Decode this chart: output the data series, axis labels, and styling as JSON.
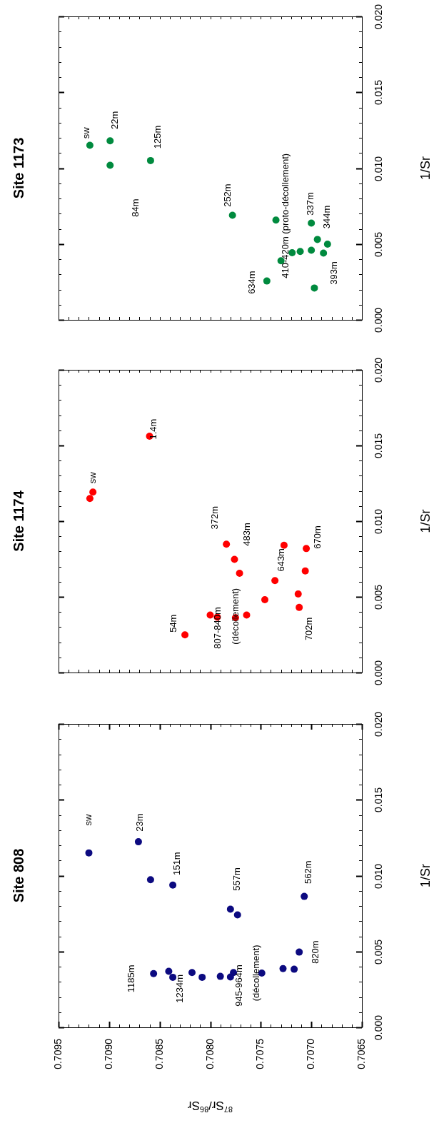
{
  "chart_data": [
    {
      "type": "scatter",
      "title": "Site 1173",
      "ylabel": "1/Sr",
      "marker": "circle",
      "tick_labels": "y",
      "x": [
        0.70919,
        0.70899,
        0.70899,
        0.70859,
        0.70778,
        0.70735,
        0.707,
        0.70694,
        0.70684,
        0.707,
        0.70688,
        0.70711,
        0.70719,
        0.7073,
        0.70744,
        0.70697
      ],
      "series": [
        {
          "color": "#008a3e",
          "values": [
            0.01151,
            0.0118,
            0.01019,
            0.0105,
            0.00689,
            0.00658,
            0.00638,
            0.0053,
            0.00499,
            0.00459,
            0.0044,
            0.00451,
            0.00442,
            0.00389,
            0.00256,
            0.0021
          ]
        }
      ],
      "xlim": [
        0.7095,
        0.7065
      ],
      "xticks": [
        {
          "value": 0.7065,
          "label": null
        },
        {
          "value": 0.7066,
          "label": null
        },
        {
          "value": 0.7067,
          "label": null
        },
        {
          "value": 0.7068,
          "label": null
        },
        {
          "value": 0.7069,
          "label": null
        },
        {
          "value": 0.707,
          "label": null
        },
        {
          "value": 0.7071,
          "label": null
        },
        {
          "value": 0.7072,
          "label": null
        },
        {
          "value": 0.7073,
          "label": null
        },
        {
          "value": 0.7074,
          "label": null
        },
        {
          "value": 0.7075,
          "label": null
        },
        {
          "value": 0.7076,
          "label": null
        },
        {
          "value": 0.7077,
          "label": null
        },
        {
          "value": 0.7078,
          "label": null
        },
        {
          "value": 0.7079,
          "label": null
        },
        {
          "value": 0.708,
          "label": null
        },
        {
          "value": 0.7081,
          "label": null
        },
        {
          "value": 0.7082,
          "label": null
        },
        {
          "value": 0.7083,
          "label": null
        },
        {
          "value": 0.7084,
          "label": null
        },
        {
          "value": 0.7085,
          "label": null
        },
        {
          "value": 0.7086,
          "label": null
        },
        {
          "value": 0.7087,
          "label": null
        },
        {
          "value": 0.7088,
          "label": null
        },
        {
          "value": 0.7089,
          "label": null
        },
        {
          "value": 0.709,
          "label": null
        },
        {
          "value": 0.7091,
          "label": null
        },
        {
          "value": 0.7092,
          "label": null
        },
        {
          "value": 0.7093,
          "label": null
        },
        {
          "value": 0.7094,
          "label": null
        },
        {
          "value": 0.7095,
          "label": null
        }
      ],
      "ylim": [
        0,
        0.02
      ],
      "yticks": [
        {
          "value": 0,
          "label": "0.000"
        },
        {
          "value": 0.001,
          "label": null
        },
        {
          "value": 0.002,
          "label": null
        },
        {
          "value": 0.003,
          "label": null
        },
        {
          "value": 0.004,
          "label": null
        },
        {
          "value": 0.005,
          "label": "0.005"
        },
        {
          "value": 0.006,
          "label": null
        },
        {
          "value": 0.007,
          "label": null
        },
        {
          "value": 0.008,
          "label": null
        },
        {
          "value": 0.009,
          "label": null
        },
        {
          "value": 0.01,
          "label": "0.010"
        },
        {
          "value": 0.011,
          "label": null
        },
        {
          "value": 0.012,
          "label": null
        },
        {
          "value": 0.013,
          "label": null
        },
        {
          "value": 0.014,
          "label": null
        },
        {
          "value": 0.015,
          "label": "0.015"
        },
        {
          "value": 0.016,
          "label": null
        },
        {
          "value": 0.017,
          "label": null
        },
        {
          "value": 0.018,
          "label": null
        },
        {
          "value": 0.019,
          "label": null
        },
        {
          "value": 0.02,
          "label": "0.020"
        }
      ],
      "annotations": [
        {
          "text": "sw",
          "x": 0.70919,
          "y": 0.01151
        },
        {
          "text": "22m",
          "x": 0.70899,
          "y": 0.0118
        },
        {
          "text": "125m",
          "x": 0.70859,
          "y": 0.0105
        },
        "84m",
        {
          "text": "252m",
          "x": 0.70778,
          "y": 0.00689
        },
        {
          "text": "337m",
          "x": 0.707,
          "y": 0.00638
        },
        {
          "text": "344m",
          "x": 0.70684,
          "y": 0.00499
        },
        {
          "text": "393m",
          "x": 0.70697,
          "y": 0.0021
        },
        {
          "text": "634m",
          "x": 0.70744,
          "y": 0.00256
        },
        {
          "text": "410-420m (proto-décollement)",
          "x": 0.7073,
          "y": 0.00389
        }
      ]
    },
    {
      "type": "scatter",
      "title": "Site 1174",
      "ylabel": "1/Sr",
      "marker": "circle",
      "tick_labels": "y",
      "x": [
        0.70919,
        0.70916,
        0.7086,
        0.70825,
        0.708,
        0.70793,
        0.70784,
        0.70776,
        0.70771,
        0.70775,
        0.70764,
        0.70746,
        0.70736,
        0.70727,
        0.70705,
        0.70706,
        0.70713,
        0.70712
      ],
      "series": [
        {
          "color": "#ff0000",
          "values": [
            0.0115,
            0.01192,
            0.01561,
            0.00249,
            0.0038,
            0.00366,
            0.00848,
            0.00748,
            0.00656,
            0.00362,
            0.0038,
            0.00481,
            0.00607,
            0.00841,
            0.00819,
            0.00671,
            0.00519,
            0.0043
          ]
        }
      ],
      "xlim": [
        0.7095,
        0.7065
      ],
      "xticks": [
        {
          "value": 0.7065,
          "label": null
        },
        {
          "value": 0.7066,
          "label": null
        },
        {
          "value": 0.7067,
          "label": null
        },
        {
          "value": 0.7068,
          "label": null
        },
        {
          "value": 0.7069,
          "label": null
        },
        {
          "value": 0.707,
          "label": null
        },
        {
          "value": 0.7071,
          "label": null
        },
        {
          "value": 0.7072,
          "label": null
        },
        {
          "value": 0.7073,
          "label": null
        },
        {
          "value": 0.7074,
          "label": null
        },
        {
          "value": 0.7075,
          "label": null
        },
        {
          "value": 0.7076,
          "label": null
        },
        {
          "value": 0.7077,
          "label": null
        },
        {
          "value": 0.7078,
          "label": null
        },
        {
          "value": 0.7079,
          "label": null
        },
        {
          "value": 0.708,
          "label": null
        },
        {
          "value": 0.7081,
          "label": null
        },
        {
          "value": 0.7082,
          "label": null
        },
        {
          "value": 0.7083,
          "label": null
        },
        {
          "value": 0.7084,
          "label": null
        },
        {
          "value": 0.7085,
          "label": null
        },
        {
          "value": 0.7086,
          "label": null
        },
        {
          "value": 0.7087,
          "label": null
        },
        {
          "value": 0.7088,
          "label": null
        },
        {
          "value": 0.7089,
          "label": null
        },
        {
          "value": 0.709,
          "label": null
        },
        {
          "value": 0.7091,
          "label": null
        },
        {
          "value": 0.7092,
          "label": null
        },
        {
          "value": 0.7093,
          "label": null
        },
        {
          "value": 0.7094,
          "label": null
        },
        {
          "value": 0.7095,
          "label": null
        }
      ],
      "ylim": [
        0,
        0.02
      ],
      "yticks": [
        {
          "value": 0,
          "label": "0.000"
        },
        {
          "value": 0.001,
          "label": null
        },
        {
          "value": 0.002,
          "label": null
        },
        {
          "value": 0.003,
          "label": null
        },
        {
          "value": 0.004,
          "label": null
        },
        {
          "value": 0.005,
          "label": "0.005"
        },
        {
          "value": 0.006,
          "label": null
        },
        {
          "value": 0.007,
          "label": null
        },
        {
          "value": 0.008,
          "label": null
        },
        {
          "value": 0.009,
          "label": null
        },
        {
          "value": 0.01,
          "label": "0.010"
        },
        {
          "value": 0.011,
          "label": null
        },
        {
          "value": 0.012,
          "label": null
        },
        {
          "value": 0.013,
          "label": null
        },
        {
          "value": 0.014,
          "label": null
        },
        {
          "value": 0.015,
          "label": "0.015"
        },
        {
          "value": 0.016,
          "label": null
        },
        {
          "value": 0.017,
          "label": null
        },
        {
          "value": 0.018,
          "label": null
        },
        {
          "value": 0.019,
          "label": null
        },
        {
          "value": 0.02,
          "label": "0.020"
        }
      ],
      "annotations": [
        {
          "text": "sw",
          "x": 0.70916,
          "y": 0.01192
        },
        {
          "text": "1.4m",
          "x": 0.7086,
          "y": 0.01561
        },
        {
          "text": "372m",
          "x": 0.70784,
          "y": 0.00848
        },
        {
          "text": "483m",
          "x": 0.70776,
          "y": 0.00748
        },
        {
          "text": "643m",
          "x": 0.70736,
          "y": 0.00607
        },
        {
          "text": "670m",
          "x": 0.70705,
          "y": 0.00819
        },
        {
          "text": "702m",
          "x": 0.70712,
          "y": 0.0043
        },
        {
          "text": "54m",
          "x": 0.70825,
          "y": 0.00249
        },
        {
          "text": "807-840m",
          "x": 0.70793,
          "y": 0.00366
        },
        {
          "text": "(décollement)",
          "x": 0.70775,
          "y": 0.00362
        }
      ]
    },
    {
      "type": "scatter",
      "title": "Site 808",
      "xlabel": "$^{87}$Sr/$^{86}$Sr",
      "ylabel": "1/Sr",
      "marker": "circle",
      "x": [
        0.7092,
        0.70871,
        0.70859,
        0.70837,
        0.7078,
        0.70773,
        0.70707,
        0.70712,
        0.70717,
        0.70728,
        0.70749,
        0.70777,
        0.7078,
        0.7079,
        0.70808,
        0.70818,
        0.70837,
        0.70841,
        0.70856
      ],
      "series": [
        {
          "color": "#0c0a80",
          "values": [
            0.0115,
            0.01223,
            0.00973,
            0.00938,
            0.00779,
            0.00741,
            0.00863,
            0.00496,
            0.00383,
            0.00387,
            0.00358,
            0.00361,
            0.00332,
            0.00336,
            0.0033,
            0.00361,
            0.0033,
            0.00369,
            0.00354
          ]
        }
      ],
      "xlim": [
        0.7095,
        0.7065
      ],
      "xticks": [
        {
          "value": 0.7065,
          "label": "0.7065"
        },
        {
          "value": 0.7066,
          "label": null
        },
        {
          "value": 0.7067,
          "label": null
        },
        {
          "value": 0.7068,
          "label": null
        },
        {
          "value": 0.7069,
          "label": null
        },
        {
          "value": 0.707,
          "label": "0.7070"
        },
        {
          "value": 0.7071,
          "label": null
        },
        {
          "value": 0.7072,
          "label": null
        },
        {
          "value": 0.7073,
          "label": null
        },
        {
          "value": 0.7074,
          "label": null
        },
        {
          "value": 0.7075,
          "label": "0.7075"
        },
        {
          "value": 0.7076,
          "label": null
        },
        {
          "value": 0.7077,
          "label": null
        },
        {
          "value": 0.7078,
          "label": null
        },
        {
          "value": 0.7079,
          "label": null
        },
        {
          "value": 0.708,
          "label": "0.7080"
        },
        {
          "value": 0.7081,
          "label": null
        },
        {
          "value": 0.7082,
          "label": null
        },
        {
          "value": 0.7083,
          "label": null
        },
        {
          "value": 0.7084,
          "label": null
        },
        {
          "value": 0.7085,
          "label": "0.7085"
        },
        {
          "value": 0.7086,
          "label": null
        },
        {
          "value": 0.7087,
          "label": null
        },
        {
          "value": 0.7088,
          "label": null
        },
        {
          "value": 0.7089,
          "label": null
        },
        {
          "value": 0.709,
          "label": "0.7090"
        },
        {
          "value": 0.7091,
          "label": null
        },
        {
          "value": 0.7092,
          "label": null
        },
        {
          "value": 0.7093,
          "label": null
        },
        {
          "value": 0.7094,
          "label": null
        },
        {
          "value": 0.7095,
          "label": "0.7095"
        }
      ],
      "ylim": [
        0,
        0.02
      ],
      "yticks": [
        {
          "value": 0,
          "label": "0.000"
        },
        {
          "value": 0.001,
          "label": null
        },
        {
          "value": 0.002,
          "label": null
        },
        {
          "value": 0.003,
          "label": null
        },
        {
          "value": 0.004,
          "label": null
        },
        {
          "value": 0.005,
          "label": "0.005"
        },
        {
          "value": 0.006,
          "label": null
        },
        {
          "value": 0.007,
          "label": null
        },
        {
          "value": 0.008,
          "label": null
        },
        {
          "value": 0.009,
          "label": null
        },
        {
          "value": 0.01,
          "label": "0.010"
        },
        {
          "value": 0.011,
          "label": null
        },
        {
          "value": 0.012,
          "label": null
        },
        {
          "value": 0.013,
          "label": null
        },
        {
          "value": 0.014,
          "label": null
        },
        {
          "value": 0.015,
          "label": "0.015"
        },
        {
          "value": 0.016,
          "label": null
        },
        {
          "value": 0.017,
          "label": null
        },
        {
          "value": 0.018,
          "label": null
        },
        {
          "value": 0.019,
          "label": null
        },
        {
          "value": 0.02,
          "label": "0.020"
        }
      ],
      "annotations": [
        {
          "text": "sw",
          "x": 0.7092,
          "y": 0.0115
        },
        {
          "text": "23m",
          "x": 0.70871,
          "y": 0.01223
        },
        {
          "text": "151m",
          "x": 0.70837,
          "y": 0.00938
        },
        {
          "text": "557m",
          "x": 0.7078,
          "y": 0.00779
        },
        {
          "text": "562m",
          "x": 0.70707,
          "y": 0.00863
        },
        {
          "text": "820m",
          "x": 0.70712,
          "y": 0.00496
        },
        {
          "text": "1185m",
          "x": 0.70856,
          "y": 0.00354
        },
        {
          "text": "1234m",
          "x": 0.70837,
          "y": 0.0033
        },
        {
          "text": "945-964m",
          "x": 0.7078,
          "y": 0.00332
        },
        {
          "text": "(décollement)",
          "x": 0.70749,
          "y": 0.00358
        }
      ]
    }
  ]
}
